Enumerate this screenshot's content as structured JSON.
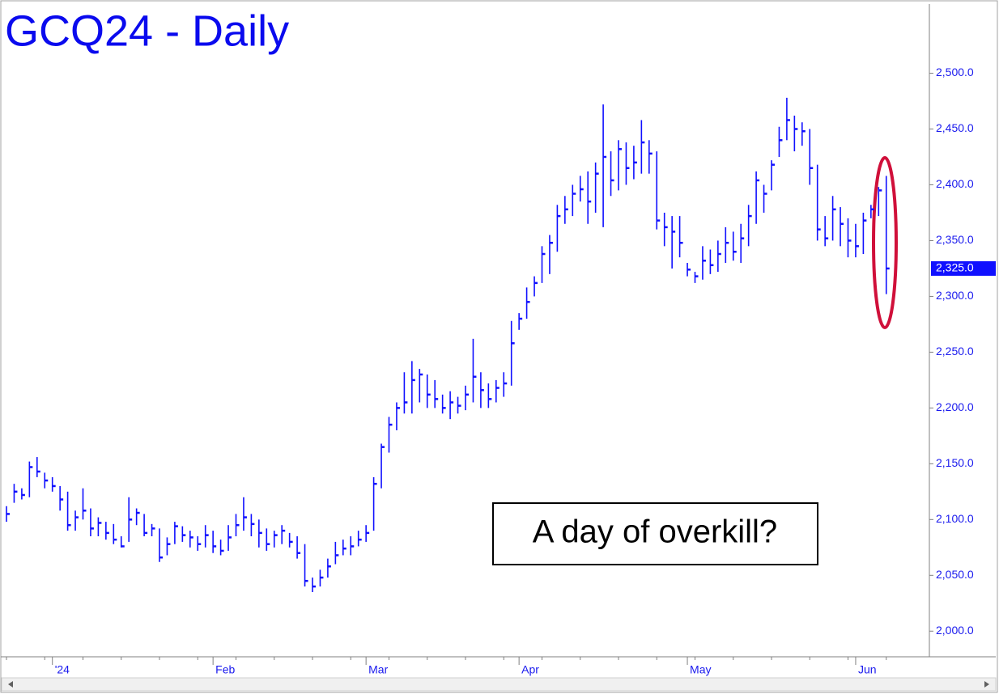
{
  "chart_data": {
    "type": "hlc",
    "title": "GCQ24 - Daily",
    "annotation": "A day of overkill?",
    "color": "#1010ff",
    "categories": [
      null,
      null,
      null,
      null,
      null,
      null,
      "'24",
      null,
      null,
      null,
      null,
      null,
      null,
      null,
      null,
      null,
      null,
      null,
      null,
      null,
      null,
      null,
      null,
      null,
      null,
      null,
      null,
      "Feb",
      null,
      null,
      null,
      null,
      null,
      null,
      null,
      null,
      null,
      null,
      null,
      null,
      null,
      null,
      null,
      null,
      null,
      null,
      null,
      "Mar",
      null,
      null,
      null,
      null,
      null,
      null,
      null,
      null,
      null,
      null,
      null,
      null,
      null,
      null,
      null,
      null,
      null,
      null,
      null,
      "Apr",
      null,
      null,
      null,
      null,
      null,
      null,
      null,
      null,
      null,
      null,
      null,
      null,
      null,
      null,
      null,
      null,
      null,
      null,
      null,
      null,
      null,
      "May",
      null,
      null,
      null,
      null,
      null,
      null,
      null,
      null,
      null,
      null,
      null,
      null,
      null,
      null,
      null,
      null,
      null,
      null,
      null,
      null,
      null,
      "Jun",
      null,
      null,
      null,
      null
    ],
    "high": [
      2112,
      2132,
      2128,
      2152,
      2156,
      2142,
      2138,
      2130,
      2125,
      2108,
      2128,
      2110,
      2102,
      2098,
      2096,
      2085,
      2120,
      2110,
      2105,
      2096,
      2092,
      2084,
      2098,
      2094,
      2090,
      2085,
      2095,
      2090,
      2082,
      2095,
      2105,
      2120,
      2105,
      2100,
      2092,
      2090,
      2095,
      2088,
      2085,
      2078,
      2048,
      2055,
      2065,
      2080,
      2082,
      2085,
      2090,
      2095,
      2138,
      2168,
      2192,
      2205,
      2232,
      2242,
      2235,
      2230,
      2225,
      2212,
      2215,
      2210,
      2220,
      2262,
      2232,
      2222,
      2225,
      2232,
      2278,
      2285,
      2308,
      2318,
      2345,
      2355,
      2382,
      2390,
      2400,
      2408,
      2412,
      2420,
      2472,
      2430,
      2440,
      2438,
      2435,
      2458,
      2440,
      2430,
      2375,
      2372,
      2372,
      2330,
      2322,
      2345,
      2342,
      2350,
      2362,
      2358,
      2365,
      2382,
      2412,
      2400,
      2422,
      2452,
      2478,
      2462,
      2456,
      2450,
      2418,
      2372,
      2390,
      2380,
      2370,
      2365,
      2375,
      2382,
      2398,
      2408
    ],
    "low": [
      2098,
      2115,
      2118,
      2120,
      2138,
      2128,
      2125,
      2108,
      2090,
      2090,
      2100,
      2085,
      2085,
      2082,
      2078,
      2075,
      2080,
      2095,
      2085,
      2085,
      2062,
      2068,
      2078,
      2080,
      2075,
      2072,
      2075,
      2070,
      2068,
      2072,
      2085,
      2090,
      2085,
      2075,
      2072,
      2075,
      2078,
      2075,
      2065,
      2040,
      2035,
      2040,
      2048,
      2060,
      2068,
      2068,
      2076,
      2080,
      2090,
      2128,
      2160,
      2180,
      2195,
      2195,
      2205,
      2200,
      2200,
      2195,
      2190,
      2195,
      2198,
      2205,
      2200,
      2200,
      2205,
      2210,
      2220,
      2270,
      2280,
      2300,
      2312,
      2320,
      2340,
      2365,
      2372,
      2385,
      2365,
      2375,
      2362,
      2390,
      2395,
      2400,
      2405,
      2410,
      2410,
      2360,
      2345,
      2325,
      2335,
      2318,
      2312,
      2315,
      2320,
      2322,
      2330,
      2332,
      2330,
      2345,
      2365,
      2375,
      2395,
      2425,
      2440,
      2430,
      2435,
      2400,
      2350,
      2345,
      2350,
      2345,
      2335,
      2335,
      2338,
      2370,
      2372,
      2302
    ],
    "close": [
      2105,
      2125,
      2122,
      2147,
      2143,
      2135,
      2130,
      2118,
      2095,
      2102,
      2108,
      2092,
      2097,
      2088,
      2082,
      2076,
      2100,
      2106,
      2088,
      2092,
      2066,
      2078,
      2094,
      2086,
      2084,
      2078,
      2086,
      2076,
      2072,
      2084,
      2095,
      2102,
      2096,
      2088,
      2078,
      2086,
      2090,
      2080,
      2070,
      2045,
      2040,
      2048,
      2058,
      2068,
      2074,
      2076,
      2082,
      2088,
      2132,
      2165,
      2185,
      2200,
      2205,
      2225,
      2230,
      2212,
      2208,
      2200,
      2205,
      2202,
      2212,
      2228,
      2216,
      2208,
      2218,
      2222,
      2258,
      2280,
      2295,
      2312,
      2338,
      2348,
      2372,
      2378,
      2392,
      2396,
      2385,
      2410,
      2425,
      2404,
      2432,
      2415,
      2420,
      2438,
      2428,
      2368,
      2362,
      2358,
      2348,
      2324,
      2318,
      2332,
      2328,
      2338,
      2348,
      2340,
      2352,
      2372,
      2404,
      2392,
      2418,
      2440,
      2458,
      2450,
      2448,
      2415,
      2360,
      2352,
      2378,
      2365,
      2350,
      2345,
      2368,
      2378,
      2395,
      2325
    ],
    "last_price": {
      "value": 2325,
      "label": "2,325.0"
    },
    "ylim": [
      1977,
      2562
    ],
    "yticks": [
      {
        "value": 2000,
        "label": "2,000.0"
      },
      {
        "value": 2050,
        "label": "2,050.0"
      },
      {
        "value": 2100,
        "label": "2,100.0"
      },
      {
        "value": 2150,
        "label": "2,150.0"
      },
      {
        "value": 2200,
        "label": "2,200.0"
      },
      {
        "value": 2250,
        "label": "2,250.0"
      },
      {
        "value": 2300,
        "label": "2,300.0"
      },
      {
        "value": 2350,
        "label": "2,350.0"
      },
      {
        "value": 2400,
        "label": "2,400.0"
      },
      {
        "value": 2450,
        "label": "2,450.0"
      },
      {
        "value": 2500,
        "label": "2,500.0"
      }
    ]
  }
}
